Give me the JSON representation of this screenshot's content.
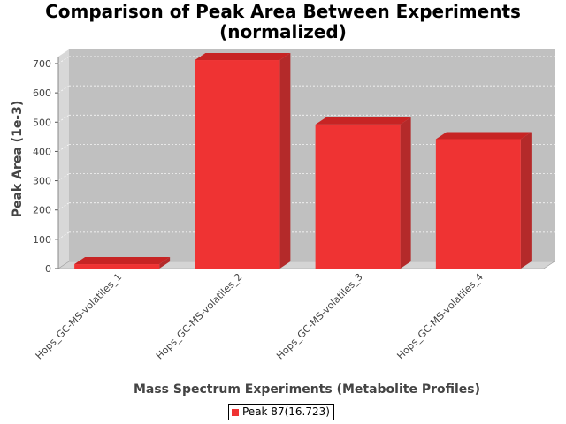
{
  "chart_data": {
    "type": "bar",
    "title_line1": "Comparison of Peak Area Between Experiments",
    "title_line2": "(normalized)",
    "xlabel": "Mass Spectrum Experiments (Metabolite Profiles)",
    "ylabel": "Peak Area (1e-3)",
    "categories": [
      "Hops_GC-MS-volatiles_1",
      "Hops_GC-MS-volatiles_2",
      "Hops_GC-MS-volatiles_3",
      "Hops_GC-MS-volatiles_4"
    ],
    "series": [
      {
        "name": "Peak 87(16.723)",
        "values": [
          15,
          712,
          492,
          442
        ]
      }
    ],
    "yticks": [
      "0",
      "100",
      "200",
      "300",
      "400",
      "500",
      "600",
      "700"
    ],
    "ylim": [
      0,
      750
    ],
    "grid": true,
    "legend_position": "bottom",
    "colors": {
      "bar_front": "#ef3333",
      "bar_top": "#c72424",
      "bar_side": "#b42a2a",
      "plot_bg": "#c0c0c0",
      "wall": "#d8d8d8",
      "floor": "#d4d4d4"
    }
  }
}
